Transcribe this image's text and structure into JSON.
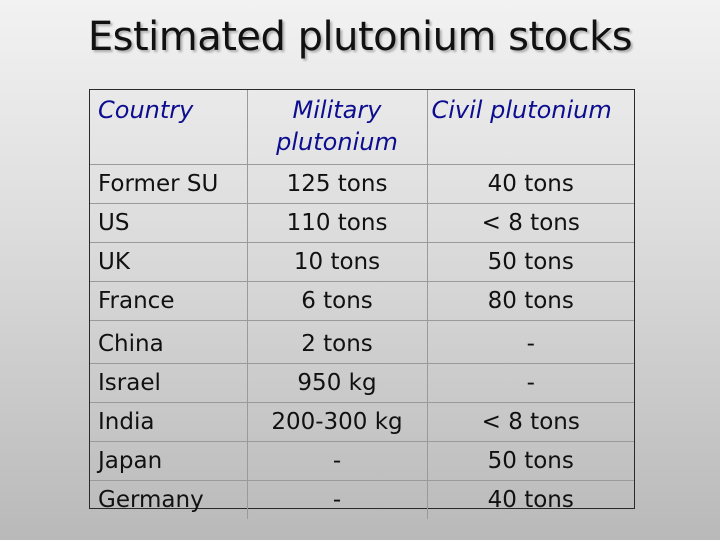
{
  "title": "Estimated plutonium stocks",
  "table": {
    "headers": {
      "country": "Country",
      "military": "Military plutonium",
      "civil": "Civil plutonium"
    },
    "rows": [
      {
        "country": "Former SU",
        "military": "125 tons",
        "civil": "40 tons"
      },
      {
        "country": "US",
        "military": "110 tons",
        "civil": "< 8 tons"
      },
      {
        "country": "UK",
        "military": "10 tons",
        "civil": "50 tons"
      },
      {
        "country": "France",
        "military": "6 tons",
        "civil": "80 tons"
      },
      {
        "country": "China",
        "military": "2 tons",
        "civil": "-"
      },
      {
        "country": "Israel",
        "military": "950 kg",
        "civil": "-"
      },
      {
        "country": "India",
        "military": "200-300 kg",
        "civil": "< 8 tons"
      },
      {
        "country": "Japan",
        "military": "-",
        "civil": "50 tons"
      },
      {
        "country": "Germany",
        "military": "-",
        "civil": "40 tons"
      }
    ]
  }
}
